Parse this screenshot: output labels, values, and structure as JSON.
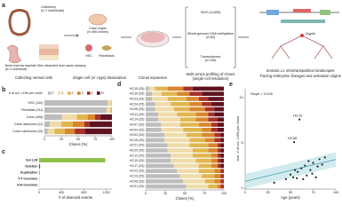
{
  "figure_a": {
    "panel": "a",
    "colectomy": "Colectomy",
    "colectomy_n": "(n=7 individuals)",
    "bone_marrow": "Bone marrow aspirate",
    "bone_marrow_n": "(n=1 individual)",
    "skin": "Skin dissected from same autopsy",
    "colon_crypts": "Colon crypts",
    "colon_crypts_n": "(n=456 clones)",
    "hsc": "HSC",
    "fibroblasts": "Fibroblasts",
    "caption_collect": "Collecting normal cells",
    "caption_dissociation": "Single-cell (or crypt) dissociation",
    "caption_expansion": "Clonal expansion",
    "wgs": "WGS (n=899)",
    "methylation": "Whole-genome DNA methylation",
    "methylation_n": "(n=84)",
    "transcriptome": "Transcriptome",
    "transcriptome_n": "(n=146)",
    "caption_profiling": "Multi-omics profiling of clones",
    "caption_profiling2": "(single-cell resolution)",
    "zygote": "Zygote",
    "caption_l1": "Somatic L1 retrotransposition landscapes",
    "caption_l1b": "Tracing embryonic lineages and activation origins"
  },
  "chart_data": [
    {
      "type": "stacked_hbar",
      "panel": "b",
      "legend_title": "# of sol. L1Rs per clone",
      "x_label": "Clones (%)",
      "categories": [
        "HSC (140)",
        "Fibroblast (311)",
        "Colon (456)",
        "Colon adenoma (12)",
        "Colon carcinoma (15)"
      ],
      "series": [
        {
          "name": "0",
          "color": "#bdbdbd",
          "values": [
            94,
            92,
            26,
            8,
            5
          ]
        },
        {
          "name": "1",
          "color": "#efdcaa",
          "values": [
            5,
            6,
            22,
            17,
            10
          ]
        },
        {
          "name": "2",
          "color": "#e2b64f",
          "values": [
            1,
            2,
            16,
            17,
            15
          ]
        },
        {
          "name": "3",
          "color": "#d8862f",
          "values": [
            0,
            0,
            11,
            17,
            15
          ]
        },
        {
          "name": "4",
          "color": "#a8322a",
          "values": [
            0,
            0,
            8,
            8,
            15
          ]
        },
        {
          "name": "5+",
          "color": "#5e1220",
          "values": [
            0,
            0,
            17,
            33,
            40
          ]
        }
      ],
      "xlim": [
        0,
        100
      ],
      "xticks": [
        0,
        25,
        50,
        75,
        100
      ]
    },
    {
      "type": "hbar",
      "panel": "c",
      "x_label": "# of detected events",
      "categories": [
        "Sol L1R",
        "Deletion",
        "Duplication",
        "T-T inversion",
        "H-H inversion"
      ],
      "values": [
        1180,
        18,
        8,
        3,
        2
      ],
      "colors": [
        "#8cc04b",
        "#555555",
        "#555555",
        "#555555",
        "#555555"
      ],
      "xlim": [
        0,
        1300
      ],
      "xticks": [
        0,
        400,
        800,
        1200
      ]
    },
    {
      "type": "stacked_hbar",
      "panel": "d",
      "x_label": "Clones (%)",
      "categories": [
        "HC15 (25)",
        "HC19 (25)",
        "HC23 (25)",
        "HC24 (25)",
        "HC06 (25)",
        "HC11 (25)",
        "HC14 (25)",
        "HC07 (25)",
        "HC04 (25)",
        "HC02 (25)",
        "HC16 (25)",
        "HC21 (25)",
        "HC20 (25)",
        "HC12 (25)",
        "HC10 (25)",
        "HC17 (25)",
        "HC22 (25)",
        "HC13 (25)",
        "HC08 (25)",
        "HC01 (25)"
      ],
      "series": [
        {
          "name": "0",
          "color": "#bdbdbd",
          "values": [
            4,
            8,
            8,
            12,
            12,
            16,
            16,
            20,
            20,
            24,
            24,
            28,
            28,
            32,
            32,
            36,
            40,
            44,
            48,
            52
          ]
        },
        {
          "name": "1",
          "color": "#efdcaa",
          "values": [
            8,
            12,
            20,
            20,
            24,
            24,
            28,
            24,
            28,
            28,
            32,
            28,
            32,
            28,
            32,
            32,
            28,
            28,
            28,
            28
          ]
        },
        {
          "name": "2",
          "color": "#e2b64f",
          "values": [
            16,
            20,
            24,
            24,
            20,
            24,
            20,
            24,
            24,
            20,
            20,
            24,
            20,
            24,
            20,
            16,
            20,
            16,
            12,
            12
          ]
        },
        {
          "name": "3",
          "color": "#d8862f",
          "values": [
            20,
            16,
            16,
            16,
            20,
            16,
            16,
            16,
            12,
            16,
            12,
            12,
            12,
            8,
            8,
            8,
            8,
            8,
            8,
            4
          ]
        },
        {
          "name": "4",
          "color": "#a8322a",
          "values": [
            12,
            16,
            12,
            12,
            12,
            8,
            12,
            8,
            8,
            8,
            8,
            4,
            4,
            4,
            4,
            4,
            4,
            4,
            4,
            4
          ]
        },
        {
          "name": "5+",
          "color": "#5e1220",
          "values": [
            40,
            28,
            20,
            16,
            12,
            12,
            8,
            8,
            8,
            4,
            4,
            4,
            4,
            4,
            4,
            4,
            0,
            0,
            0,
            0
          ]
        }
      ],
      "xlim": [
        0,
        100
      ],
      "xticks": [
        0,
        25,
        50,
        75,
        100
      ]
    },
    {
      "type": "scatter",
      "panel": "e",
      "x_label": "Age (years)",
      "y_label": "Ave. # of sol. L1Rs per clone",
      "color": "#222222",
      "annotations": [
        "Slope = 0.026",
        "HC19",
        "HC08"
      ],
      "x": [
        32,
        45,
        50,
        53,
        55,
        58,
        60,
        62,
        64,
        66,
        68,
        70,
        72,
        74,
        75,
        78,
        80,
        82,
        85,
        88,
        57,
        54
      ],
      "y": [
        0.6,
        1.0,
        1.5,
        1.2,
        2.0,
        1.8,
        7.6,
        2.2,
        1.0,
        2.5,
        1.4,
        3.0,
        2.0,
        1.6,
        2.8,
        1.2,
        2.4,
        3.2,
        2.6,
        3.4,
        1.1,
        5.1
      ],
      "xlim": [
        0,
        100
      ],
      "xticks": [
        0,
        25,
        50,
        75,
        100
      ],
      "ylim": [
        0,
        11
      ],
      "yticks": [
        0,
        5,
        10
      ]
    }
  ]
}
